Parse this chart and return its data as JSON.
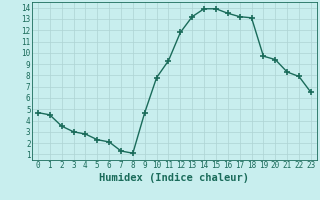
{
  "x": [
    0,
    1,
    2,
    3,
    4,
    5,
    6,
    7,
    8,
    9,
    10,
    11,
    12,
    13,
    14,
    15,
    16,
    17,
    18,
    19,
    20,
    21,
    22,
    23
  ],
  "y": [
    4.7,
    4.5,
    3.5,
    3.0,
    2.8,
    2.3,
    2.1,
    1.3,
    1.1,
    4.7,
    7.8,
    9.3,
    11.8,
    13.2,
    13.9,
    13.9,
    13.5,
    13.2,
    13.1,
    9.7,
    9.4,
    8.3,
    7.9,
    6.5
  ],
  "line_color": "#1a6b5a",
  "marker": "+",
  "marker_size": 4,
  "marker_lw": 1.2,
  "background_color": "#c8eeee",
  "grid_color": "#aed4d4",
  "xlabel": "Humidex (Indice chaleur)",
  "xlim": [
    -0.5,
    23.5
  ],
  "ylim": [
    0.5,
    14.5
  ],
  "xticks": [
    0,
    1,
    2,
    3,
    4,
    5,
    6,
    7,
    8,
    9,
    10,
    11,
    12,
    13,
    14,
    15,
    16,
    17,
    18,
    19,
    20,
    21,
    22,
    23
  ],
  "yticks": [
    1,
    2,
    3,
    4,
    5,
    6,
    7,
    8,
    9,
    10,
    11,
    12,
    13,
    14
  ],
  "tick_fontsize": 5.5,
  "xlabel_fontsize": 7.5,
  "line_color_hex": "#1a6b5a",
  "linewidth": 1.0
}
